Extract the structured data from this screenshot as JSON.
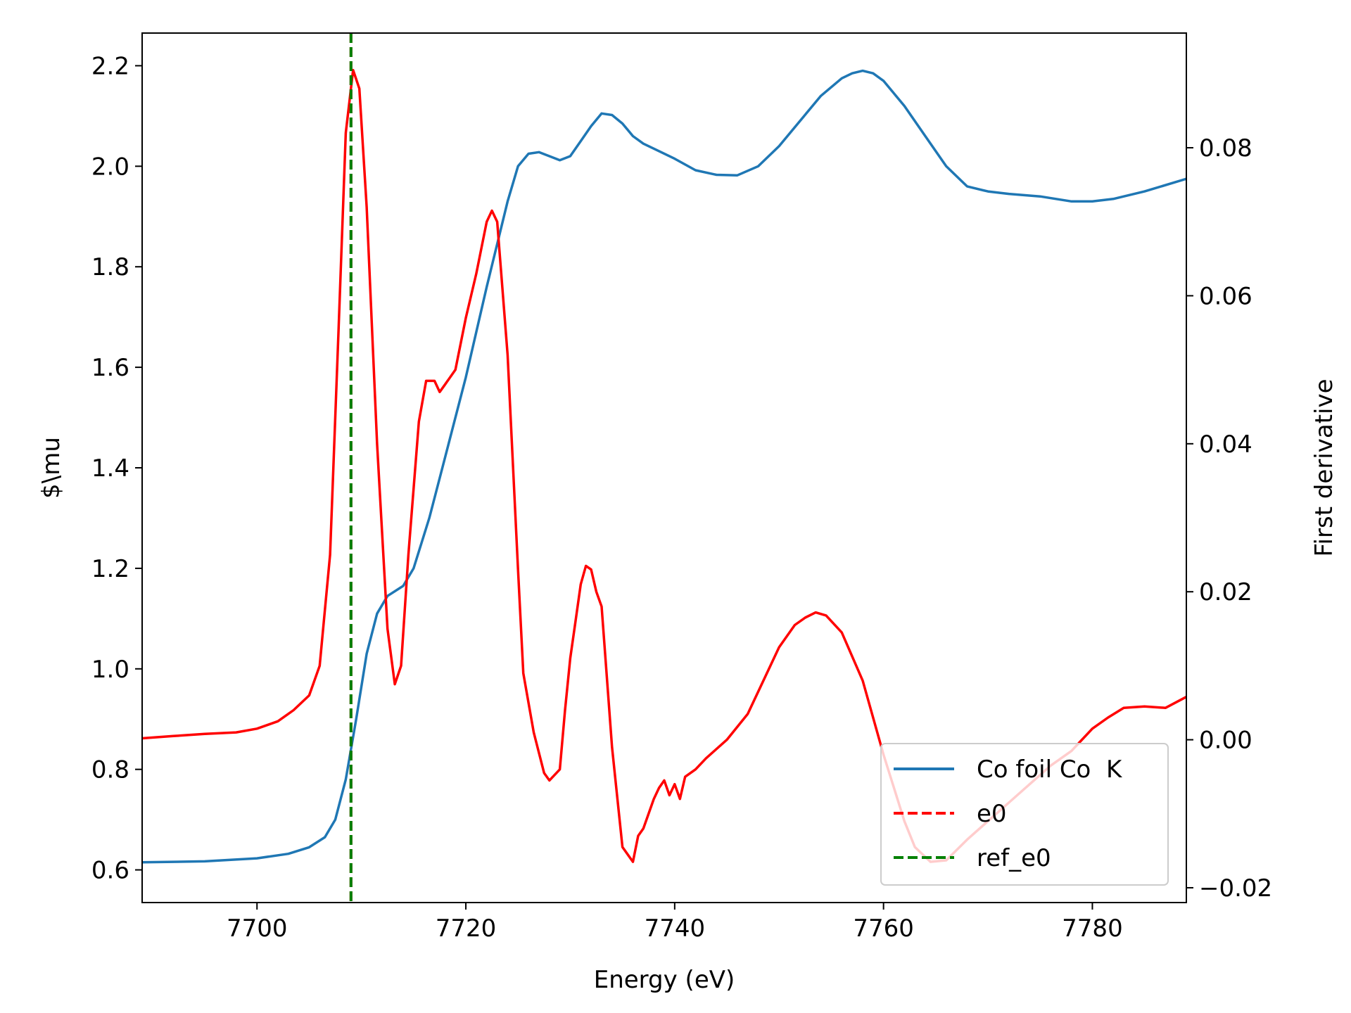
{
  "chart_data": {
    "type": "line",
    "xlabel": "Energy (eV)",
    "ylabel": "$\\mu",
    "y2label": "First derivative",
    "xlim": [
      7689,
      7789
    ],
    "ylim": [
      0.535,
      2.265
    ],
    "y2lim": [
      -0.022,
      0.0955
    ],
    "xticks": [
      "7700",
      "7720",
      "7740",
      "7760",
      "7780"
    ],
    "yticks": [
      "0.6",
      "0.8",
      "1.0",
      "1.2",
      "1.4",
      "1.6",
      "1.8",
      "2.0",
      "2.2"
    ],
    "y2ticks": [
      "−0.02",
      "0.00",
      "0.02",
      "0.04",
      "0.06",
      "0.08"
    ],
    "grid": false,
    "legend_position": "lower-right",
    "series": [
      {
        "name": "Co foil Co  K",
        "axis": "left",
        "color": "#1f77b4",
        "style": "solid",
        "x": [
          7689,
          7695,
          7700,
          7703,
          7705,
          7706.5,
          7707.5,
          7708.5,
          7709.5,
          7710.5,
          7711.5,
          7712.5,
          7714,
          7715,
          7716.5,
          7718,
          7720,
          7722,
          7724,
          7725,
          7726,
          7727,
          7728,
          7729,
          7730,
          7731,
          7732,
          7733,
          7734,
          7735,
          7736,
          7737,
          7738,
          7740,
          7742,
          7744,
          7746,
          7748,
          7750,
          7752,
          7754,
          7756,
          7757,
          7758,
          7759,
          7760,
          7762,
          7764,
          7766,
          7768,
          7770,
          7772,
          7775,
          7778,
          7780,
          7782,
          7785,
          7789
        ],
        "y": [
          0.615,
          0.617,
          0.623,
          0.632,
          0.645,
          0.665,
          0.7,
          0.78,
          0.9,
          1.03,
          1.11,
          1.145,
          1.165,
          1.2,
          1.3,
          1.42,
          1.58,
          1.76,
          1.93,
          2.0,
          2.025,
          2.028,
          2.02,
          2.012,
          2.02,
          2.05,
          2.08,
          2.105,
          2.102,
          2.085,
          2.06,
          2.045,
          2.035,
          2.015,
          1.992,
          1.983,
          1.982,
          2.0,
          2.04,
          2.09,
          2.14,
          2.175,
          2.185,
          2.19,
          2.185,
          2.17,
          2.12,
          2.06,
          2.0,
          1.96,
          1.95,
          1.945,
          1.94,
          1.93,
          1.93,
          1.935,
          1.95,
          1.975
        ]
      },
      {
        "name": "First derivative",
        "axis": "right",
        "color": "#ff0000",
        "style": "solid",
        "x": [
          7689,
          7692,
          7695,
          7698,
          7700,
          7702,
          7703.5,
          7705,
          7706,
          7707,
          7707.8,
          7708.5,
          7709.2,
          7709.8,
          7710.5,
          7711.5,
          7712.5,
          7713.2,
          7713.8,
          7714.5,
          7715.5,
          7716.2,
          7717,
          7717.5,
          7718,
          7719,
          7720,
          7721,
          7722,
          7722.5,
          7723,
          7724,
          7725,
          7725.5,
          7726.5,
          7727.5,
          7728,
          7729,
          7729.5,
          7730,
          7730.5,
          7731,
          7731.5,
          7732,
          7732.5,
          7733,
          7734,
          7735,
          7736,
          7736.5,
          7737,
          7738,
          7738.5,
          7739,
          7739.5,
          7740,
          7740.5,
          7741,
          7742,
          7743,
          7745,
          7747,
          7748.5,
          7750,
          7751.5,
          7752.5,
          7753.5,
          7754.5,
          7756,
          7758,
          7760,
          7762,
          7763,
          7764.5,
          7766,
          7768,
          7770,
          7772,
          7774,
          7776,
          7778,
          7780,
          7781.5,
          7783,
          7785,
          7787,
          7789
        ],
        "y": [
          0.0002,
          0.0005,
          0.0008,
          0.001,
          0.0015,
          0.0025,
          0.004,
          0.006,
          0.01,
          0.025,
          0.055,
          0.082,
          0.0905,
          0.088,
          0.072,
          0.04,
          0.015,
          0.0075,
          0.01,
          0.025,
          0.043,
          0.0485,
          0.0485,
          0.047,
          0.048,
          0.05,
          0.057,
          0.063,
          0.07,
          0.0715,
          0.07,
          0.052,
          0.023,
          0.009,
          0.001,
          -0.0045,
          -0.0055,
          -0.004,
          0.004,
          0.011,
          0.016,
          0.021,
          0.0235,
          0.023,
          0.02,
          0.018,
          -0.001,
          -0.0145,
          -0.0165,
          -0.013,
          -0.012,
          -0.008,
          -0.0065,
          -0.0055,
          -0.0075,
          -0.006,
          -0.008,
          -0.005,
          -0.004,
          -0.0025,
          0.0,
          0.0035,
          0.008,
          0.0125,
          0.0155,
          0.0165,
          0.0172,
          0.0168,
          0.0145,
          0.008,
          -0.002,
          -0.011,
          -0.0145,
          -0.0165,
          -0.0163,
          -0.0135,
          -0.011,
          -0.0085,
          -0.006,
          -0.0035,
          -0.0015,
          0.0015,
          0.003,
          0.0043,
          0.0045,
          0.0043,
          0.0058
        ]
      },
      {
        "name": "e0",
        "axis": "vline",
        "color": "#ff0000",
        "style": "dashed",
        "x": [
          7709
        ]
      },
      {
        "name": "ref_e0",
        "axis": "vline",
        "color": "#008000",
        "style": "dashed",
        "x": [
          7709
        ]
      }
    ]
  }
}
